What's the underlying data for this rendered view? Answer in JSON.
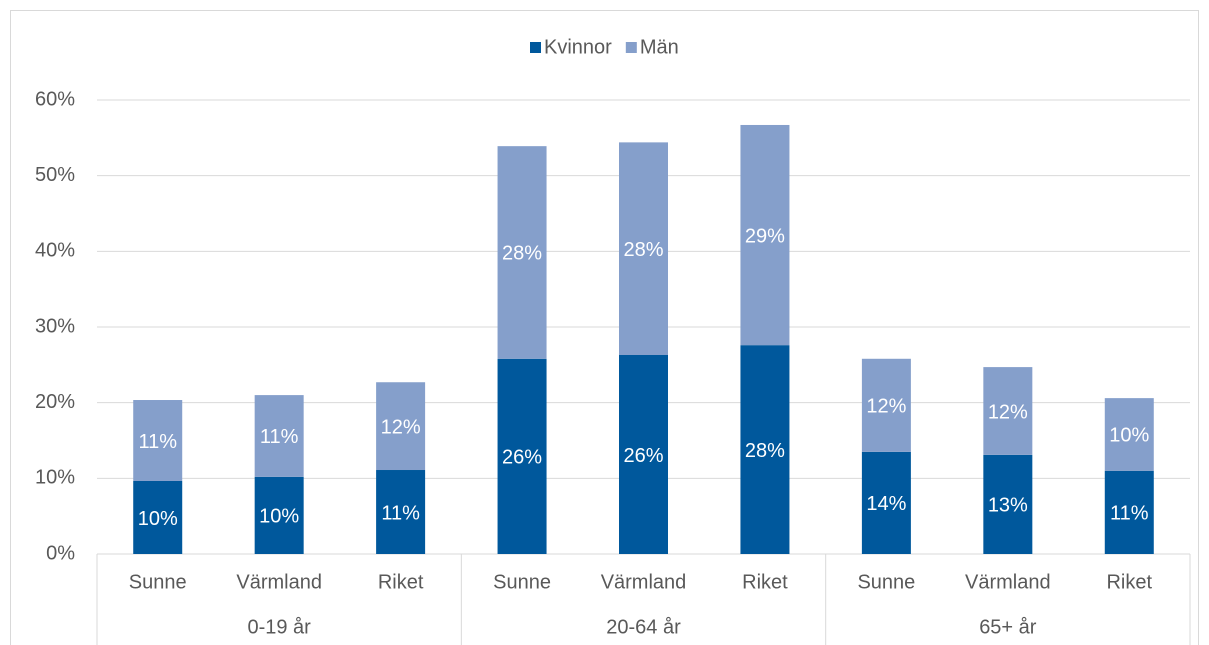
{
  "chart_data": {
    "type": "stacked_bar",
    "categories": [
      "Sunne",
      "Värmland",
      "Riket",
      "Sunne",
      "Värmland",
      "Riket",
      "Sunne",
      "Värmland",
      "Riket"
    ],
    "groups": [
      "0-19 år",
      "20-64 år",
      "65+ år"
    ],
    "series": [
      {
        "name": "Kvinnor",
        "color": "#00589c",
        "values": [
          9.65,
          10.2,
          11.1,
          25.8,
          26.3,
          27.6,
          13.5,
          13.1,
          11.0
        ],
        "value_labels": [
          "10%",
          "10%",
          "11%",
          "26%",
          "26%",
          "28%",
          "14%",
          "13%",
          "11%"
        ]
      },
      {
        "name": "Män",
        "color": "#859fcb",
        "values": [
          10.7,
          10.8,
          11.6,
          28.1,
          28.1,
          29.1,
          12.3,
          11.6,
          9.6
        ],
        "value_labels": [
          "11%",
          "11%",
          "12%",
          "28%",
          "28%",
          "29%",
          "12%",
          "12%",
          "10%"
        ]
      }
    ],
    "ylim": [
      0,
      60
    ],
    "yticks": [
      {
        "value": 0,
        "label": "0%"
      },
      {
        "value": 10,
        "label": "10%"
      },
      {
        "value": 20,
        "label": "20%"
      },
      {
        "value": 30,
        "label": "30%"
      },
      {
        "value": 40,
        "label": "40%"
      },
      {
        "value": 50,
        "label": "50%"
      },
      {
        "value": 60,
        "label": "60%"
      }
    ],
    "grid": true,
    "legend": "top"
  }
}
